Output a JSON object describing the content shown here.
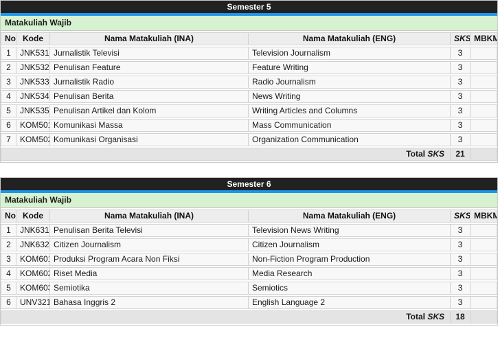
{
  "colors": {
    "title_bar_bg": "#212121",
    "title_bar_text": "#ffffff",
    "accent_blue": "#1d96eb",
    "section_green": "#d6f2d0",
    "column_header_bg": "#ededed",
    "row_bg": "#f8f8f8",
    "total_row_bg": "#e4e4e4",
    "border": "#d2d2d2"
  },
  "tables": [
    {
      "title": "Semester 5",
      "section_label": "Matakuliah Wajib",
      "columns": {
        "no": "No",
        "kode": "Kode",
        "ina": "Nama Matakuliah (INA)",
        "eng": "Nama Matakuliah (ENG)",
        "sks": "SKS",
        "mbkm": "MBKM"
      },
      "rows": [
        {
          "no": "1",
          "kode": "JNK531",
          "ina": "Jurnalistik Televisi",
          "eng": "Television Journalism",
          "sks": "3",
          "mbkm": ""
        },
        {
          "no": "2",
          "kode": "JNK532",
          "ina": "Penulisan Feature",
          "eng": "Feature Writing",
          "sks": "3",
          "mbkm": ""
        },
        {
          "no": "3",
          "kode": "JNK533",
          "ina": "Jurnalistik Radio",
          "eng": "Radio Journalism",
          "sks": "3",
          "mbkm": ""
        },
        {
          "no": "4",
          "kode": "JNK534",
          "ina": "Penulisan Berita",
          "eng": "News Writing",
          "sks": "3",
          "mbkm": ""
        },
        {
          "no": "5",
          "kode": "JNK535",
          "ina": "Penulisan Artikel dan Kolom",
          "eng": "Writing Articles and Columns",
          "sks": "3",
          "mbkm": ""
        },
        {
          "no": "6",
          "kode": "KOM501",
          "ina": "Komunikasi Massa",
          "eng": "Mass Communication",
          "sks": "3",
          "mbkm": ""
        },
        {
          "no": "7",
          "kode": "KOM502",
          "ina": "Komunikasi Organisasi",
          "eng": "Organization Communication",
          "sks": "3",
          "mbkm": ""
        }
      ],
      "total": {
        "label": "Total",
        "sks_word": "SKS",
        "value": "21",
        "mbkm": ""
      }
    },
    {
      "title": "Semester 6",
      "section_label": "Matakuliah Wajib",
      "columns": {
        "no": "No",
        "kode": "Kode",
        "ina": "Nama Matakuliah (INA)",
        "eng": "Nama Matakuliah (ENG)",
        "sks": "SKS",
        "mbkm": "MBKM"
      },
      "rows": [
        {
          "no": "1",
          "kode": "JNK631",
          "ina": "Penulisan Berita Televisi",
          "eng": "Television News Writing",
          "sks": "3",
          "mbkm": ""
        },
        {
          "no": "2",
          "kode": "JNK632",
          "ina": "Citizen Journalism",
          "eng": "Citizen Journalism",
          "sks": "3",
          "mbkm": ""
        },
        {
          "no": "3",
          "kode": "KOM601",
          "ina": "Produksi Program Acara Non Fiksi",
          "eng": "Non-Fiction Program Production",
          "sks": "3",
          "mbkm": ""
        },
        {
          "no": "4",
          "kode": "KOM602",
          "ina": "Riset Media",
          "eng": "Media Research",
          "sks": "3",
          "mbkm": ""
        },
        {
          "no": "5",
          "kode": "KOM603",
          "ina": "Semiotika",
          "eng": "Semiotics",
          "sks": "3",
          "mbkm": ""
        },
        {
          "no": "6",
          "kode": "UNV321",
          "ina": "Bahasa Inggris 2",
          "eng": "English Language 2",
          "sks": "3",
          "mbkm": ""
        }
      ],
      "total": {
        "label": "Total",
        "sks_word": "SKS",
        "value": "18",
        "mbkm": ""
      }
    }
  ]
}
